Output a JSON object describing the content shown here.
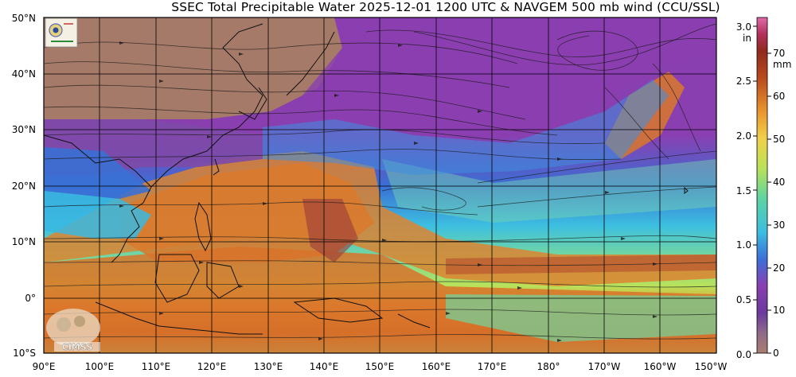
{
  "title": "SSEC Total Precipitable Water  2025-12-01 1200 UTC & NAVGEM 500 mb wind (CCU/SSL)",
  "map": {
    "lat_labels": [
      "50°N",
      "40°N",
      "30°N",
      "20°N",
      "10°N",
      "0°",
      "10°S"
    ],
    "lon_labels": [
      "90°E",
      "100°E",
      "110°E",
      "120°E",
      "130°E",
      "140°E",
      "150°E",
      "160°E",
      "170°E",
      "180°",
      "170°W",
      "160°W",
      "150°W"
    ]
  },
  "colorbar": {
    "inch_labels": [
      "3.0",
      "2.5",
      "2.0",
      "1.5",
      "1.0",
      "0.5",
      "0.0"
    ],
    "inch_unit": "in",
    "mm_labels": [
      "70",
      "60",
      "50",
      "40",
      "30",
      "20",
      "10",
      "0"
    ],
    "mm_unit": "mm",
    "colors": [
      "#a0786a",
      "#6a3a8c",
      "#8a3fb0",
      "#3b7fd6",
      "#3cbde0",
      "#58d6a6",
      "#b9e25a",
      "#f2c94c",
      "#e8952f",
      "#c95a22",
      "#8f2a1e",
      "#b2305c",
      "#e06ba8",
      "#f2a6d0"
    ]
  },
  "logos": {
    "top_left": "ssec-logo-icon",
    "bottom_left_text": "CIMSS"
  }
}
